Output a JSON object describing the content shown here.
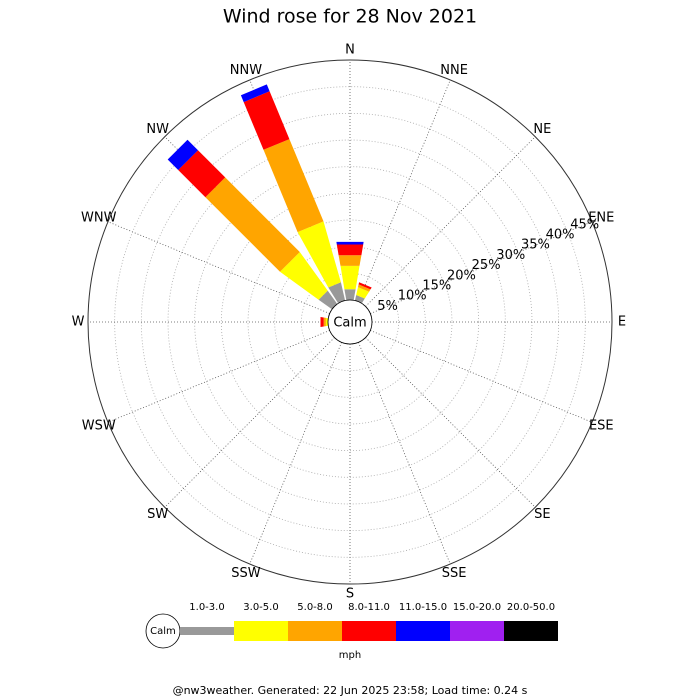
{
  "chart_data": {
    "type": "wind_rose",
    "title": "Wind rose for 28 Nov 2021",
    "calm_label": "Calm",
    "unit_label": "mph",
    "footer": "@nw3weather.  Generated: 22 Jun 2025 23:58; Load time: 0.24 s",
    "categories": [
      "N",
      "NNE",
      "NE",
      "ENE",
      "E",
      "ESE",
      "SE",
      "SSE",
      "S",
      "SSW",
      "SW",
      "WSW",
      "W",
      "WNW",
      "NW",
      "NNW"
    ],
    "ylim": [
      0,
      45
    ],
    "yticks": [
      {
        "value": 5,
        "label": "5%"
      },
      {
        "value": 10,
        "label": "10%"
      },
      {
        "value": 15,
        "label": "15%"
      },
      {
        "value": 20,
        "label": "20%"
      },
      {
        "value": 25,
        "label": "25%"
      },
      {
        "value": 30,
        "label": "30%"
      },
      {
        "value": 35,
        "label": "35%"
      },
      {
        "value": 40,
        "label": "40%"
      },
      {
        "value": 45,
        "label": "45%"
      }
    ],
    "grid": true,
    "series": [
      {
        "name": "1.0-3.0",
        "color": "#999999",
        "values": [
          2,
          1,
          0,
          0,
          0,
          0,
          0,
          0,
          0,
          0,
          0,
          0,
          0,
          0,
          3,
          3.4
        ]
      },
      {
        "name": "3.0-5.0",
        "color": "#ffff00",
        "values": [
          4.4,
          1.5,
          0,
          0,
          0,
          0,
          0,
          0,
          0,
          0,
          0,
          0,
          0.4,
          0,
          8.8,
          11.8
        ]
      },
      {
        "name": "5.0-8.0",
        "color": "#ffa500",
        "values": [
          2,
          0.5,
          0,
          0,
          0,
          0,
          0,
          0,
          0,
          0,
          0,
          0,
          0.4,
          0,
          19.8,
          16.7
        ]
      },
      {
        "name": "8.0-11.0",
        "color": "#ff0000",
        "values": [
          2,
          0.4,
          0,
          0,
          0,
          0,
          0,
          0,
          0,
          0,
          0,
          0,
          0.6,
          0,
          7.2,
          9.7
        ]
      },
      {
        "name": "11.0-15.0",
        "color": "#0000ff",
        "values": [
          0.5,
          0,
          0,
          0,
          0,
          0,
          0,
          0,
          0,
          0,
          0,
          0,
          0,
          0,
          2.8,
          1.4
        ]
      },
      {
        "name": "15.0-20.0",
        "color": "#a020f0",
        "values": [
          0,
          0,
          0,
          0,
          0,
          0,
          0,
          0,
          0,
          0,
          0,
          0,
          0,
          0,
          0,
          0
        ]
      },
      {
        "name": "20.0-50.0",
        "color": "#000000",
        "values": [
          0,
          0,
          0,
          0,
          0,
          0,
          0,
          0,
          0,
          0,
          0,
          0,
          0,
          0,
          0,
          0
        ]
      }
    ]
  }
}
